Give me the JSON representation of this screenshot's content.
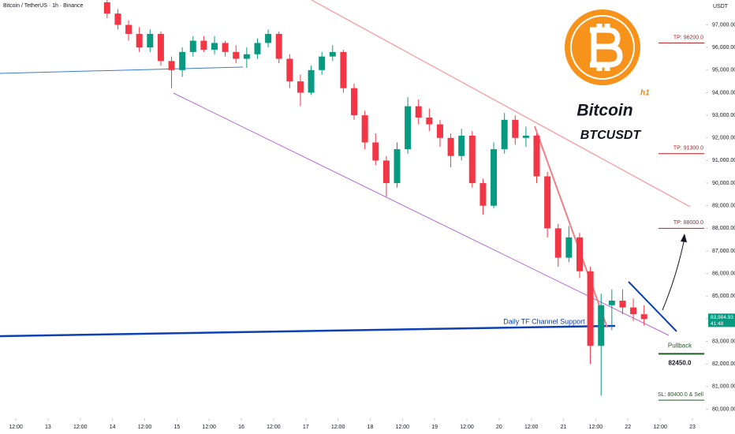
{
  "chart_data": {
    "type": "candlestick",
    "header": "Bitcoin / TetherUS · 1h · Binance",
    "title": "Bitcoin",
    "subtitle": "BTCUSDT",
    "timeframe": "h1",
    "currency": "USDT",
    "annotation": "Daily TF Channel Support",
    "up_color": "#089981",
    "down_color": "#f23645",
    "x": [
      34,
      38,
      42,
      46,
      50,
      54,
      58,
      62,
      66,
      70,
      74,
      78,
      82,
      86,
      90,
      94,
      98,
      102,
      106,
      110,
      114,
      118,
      122,
      126,
      130,
      134,
      138,
      142,
      146,
      150,
      154,
      158,
      162,
      166,
      170,
      174,
      178,
      182,
      186,
      190,
      194,
      198,
      202,
      206,
      210,
      214,
      218,
      222,
      226,
      230,
      234
    ],
    "open": [
      98000,
      97500,
      97000,
      96600,
      96000,
      96600,
      95400,
      95000,
      95800,
      96300,
      95900,
      96200,
      95800,
      95500,
      95700,
      96200,
      96600,
      95500,
      94500,
      94000,
      95000,
      95600,
      95800,
      94200,
      93000,
      91800,
      91000,
      90000,
      91500,
      93400,
      92900,
      92600,
      92000,
      91200,
      92100,
      90000,
      89000,
      91500,
      92800,
      92000,
      92100,
      90300,
      88000,
      86700,
      87600,
      86100,
      82800,
      84600,
      84800,
      84500,
      84200
    ],
    "high": [
      98100,
      97700,
      97200,
      96900,
      96800,
      96700,
      95600,
      96000,
      96500,
      96500,
      96500,
      96300,
      96100,
      96000,
      96400,
      96800,
      96700,
      95700,
      94800,
      95200,
      95800,
      96100,
      95900,
      94400,
      93200,
      92200,
      91200,
      91800,
      93800,
      93700,
      93300,
      92800,
      92200,
      92400,
      92300,
      90200,
      91800,
      93100,
      93000,
      92500,
      92200,
      90500,
      88200,
      88100,
      87800,
      86300,
      85100,
      85300,
      85300,
      84900,
      84600
    ],
    "low": [
      97300,
      96800,
      96300,
      95800,
      95800,
      95200,
      94200,
      94700,
      95600,
      95800,
      95700,
      95600,
      95300,
      95100,
      95500,
      96000,
      95300,
      94200,
      93400,
      93900,
      94800,
      95400,
      94000,
      92800,
      91500,
      90800,
      89400,
      89800,
      91300,
      92600,
      92300,
      91600,
      90700,
      91000,
      89800,
      88600,
      88900,
      91300,
      91700,
      91600,
      90000,
      87600,
      86300,
      86500,
      85800,
      82000,
      80600,
      83500,
      84200,
      83900,
      83700
    ],
    "close": [
      97500,
      97000,
      96600,
      96000,
      96600,
      95400,
      95000,
      95800,
      96300,
      95900,
      96200,
      95800,
      95500,
      95700,
      96200,
      96600,
      95500,
      94500,
      94000,
      95000,
      95600,
      95800,
      94200,
      93000,
      91800,
      91000,
      90000,
      91500,
      93400,
      92900,
      92600,
      92000,
      91200,
      92100,
      90000,
      89000,
      91500,
      92800,
      92000,
      92100,
      90300,
      88000,
      86700,
      87600,
      86100,
      82800,
      84600,
      84800,
      84500,
      84200,
      83985
    ],
    "xlim": [
      -5.9,
      257
    ],
    "xticks": [
      {
        "value": 0,
        "label": "12:00"
      },
      {
        "value": 12,
        "label": "13"
      },
      {
        "value": 24,
        "label": "12:00"
      },
      {
        "value": 36,
        "label": "14"
      },
      {
        "value": 48,
        "label": "12:00"
      },
      {
        "value": 60,
        "label": "15"
      },
      {
        "value": 72,
        "label": "12:00"
      },
      {
        "value": 84,
        "label": "16"
      },
      {
        "value": 96,
        "label": "12:00"
      },
      {
        "value": 108,
        "label": "17"
      },
      {
        "value": 120,
        "label": "12:00"
      },
      {
        "value": 132,
        "label": "18"
      },
      {
        "value": 144,
        "label": "12:00"
      },
      {
        "value": 156,
        "label": "19"
      },
      {
        "value": 168,
        "label": "12:00"
      },
      {
        "value": 180,
        "label": "20"
      },
      {
        "value": 192,
        "label": "12:00"
      },
      {
        "value": 204,
        "label": "21"
      },
      {
        "value": 216,
        "label": "12:00"
      },
      {
        "value": 228,
        "label": "22"
      },
      {
        "value": 240,
        "label": "12:00"
      },
      {
        "value": 252,
        "label": "23"
      }
    ],
    "ylim": [
      79600,
      98100
    ],
    "yticks": [
      {
        "value": 80000,
        "label": "80,000.00"
      },
      {
        "value": 81000,
        "label": "81,000.00"
      },
      {
        "value": 82000,
        "label": "82,000.00"
      },
      {
        "value": 83000,
        "label": "83,000.00"
      },
      {
        "value": 84000,
        "label": "84,000.00"
      },
      {
        "value": 85000,
        "label": "85,000.00"
      },
      {
        "value": 86000,
        "label": "86,000.00"
      },
      {
        "value": 87000,
        "label": "87,000.00"
      },
      {
        "value": 88000,
        "label": "88,000.00"
      },
      {
        "value": 89000,
        "label": "89,000.00"
      },
      {
        "value": 90000,
        "label": "90,000.00"
      },
      {
        "value": 91000,
        "label": "91,000.00"
      },
      {
        "value": 92000,
        "label": "92,000.00"
      },
      {
        "value": 93000,
        "label": "93,000.00"
      },
      {
        "value": 94000,
        "label": "94,000.00"
      },
      {
        "value": 95000,
        "label": "95,000.00"
      },
      {
        "value": 96000,
        "label": "96,000.00"
      },
      {
        "value": 97000,
        "label": "97,000.00"
      }
    ],
    "last_price": {
      "value": 83984.93,
      "label": "83,984.93"
    },
    "countdown": "41:48",
    "levels": [
      {
        "value": 96200,
        "label": "TP: 96200.0",
        "color": "#b71c1c"
      },
      {
        "value": 91300,
        "label": "TP: 91300.0",
        "color": "#b71c1c"
      },
      {
        "value": 88000,
        "label": "TP: 88000.0",
        "color": "#b71c1c"
      },
      {
        "value": 82450,
        "label": "82450.0",
        "name": "Pullback",
        "color": "#1b5e20"
      },
      {
        "value": 80400,
        "label": "SL: 80400.0 & Sell",
        "color": "#1b5e20"
      }
    ]
  }
}
